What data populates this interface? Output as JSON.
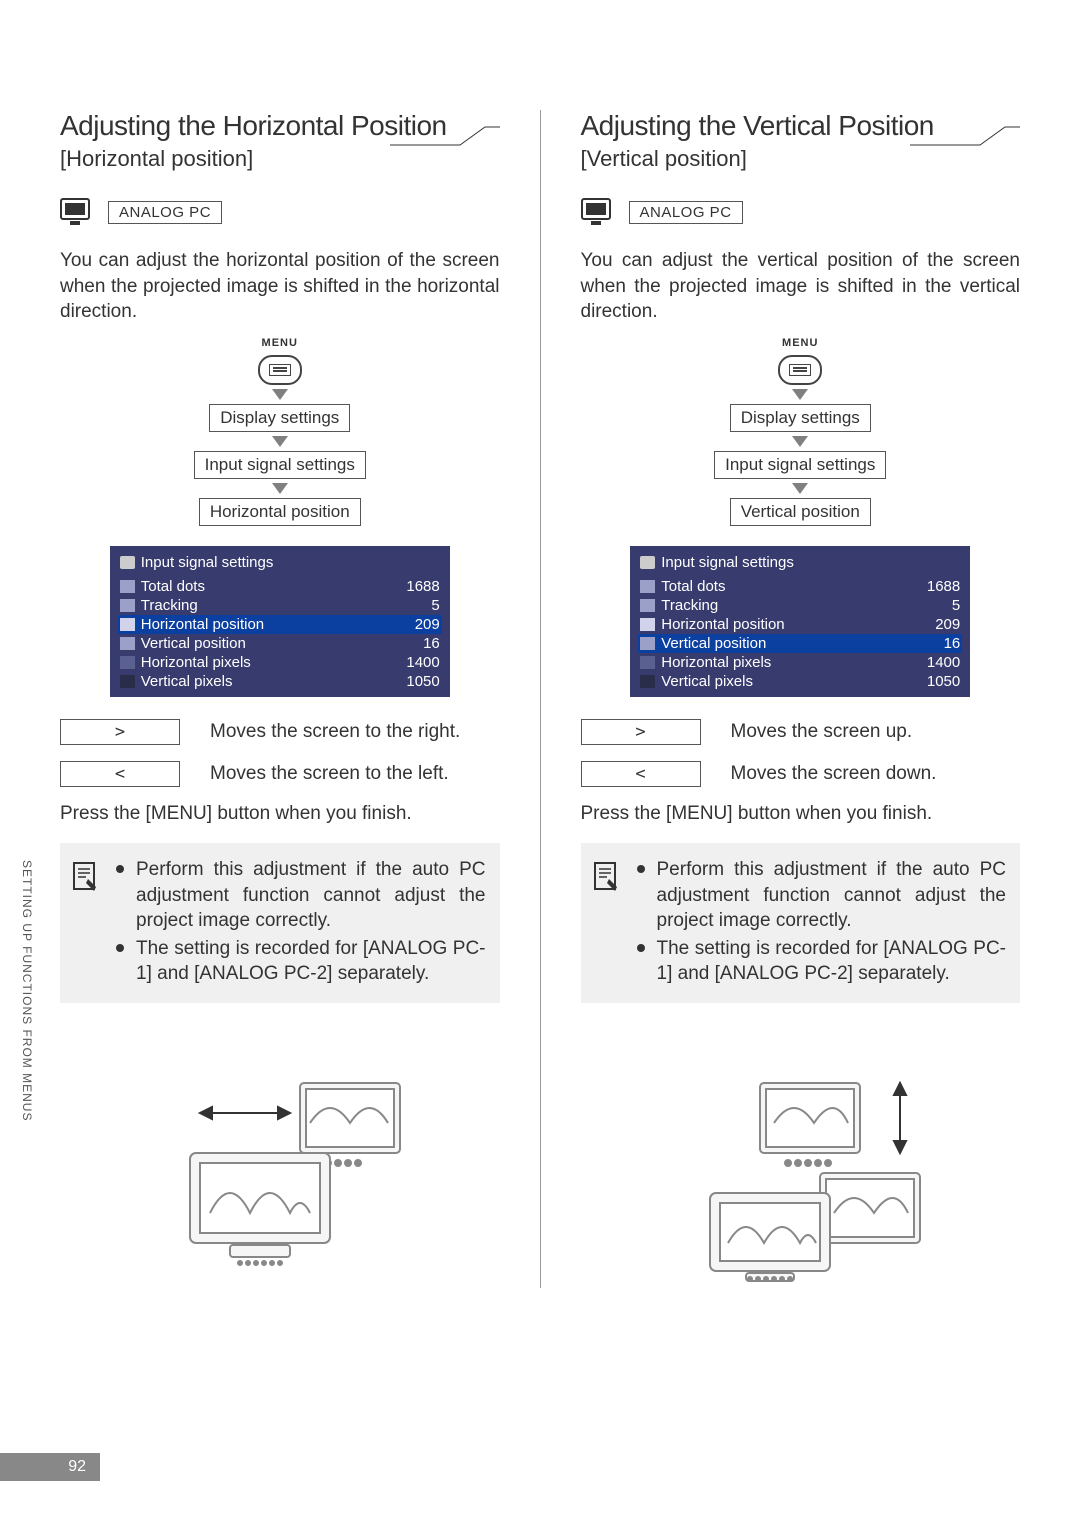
{
  "page_number": "92",
  "side_tab": "SETTING UP FUNCTIONS FROM MENUS",
  "left": {
    "title": "Adjusting the Horizontal Position",
    "subtitle": "[Horizontal position]",
    "analog_label": "ANALOG PC",
    "body": "You can adjust the horizontal position of the screen when the projected image is shifted in the horizontal direction.",
    "menu_label": "MENU",
    "flow": [
      "Display settings",
      "Input signal settings",
      "Horizontal position"
    ],
    "osd_title": "Input signal settings",
    "osd_rows": [
      {
        "label": "Total dots",
        "value": "1688",
        "sel": false,
        "ic": "ic-dots"
      },
      {
        "label": "Tracking",
        "value": "5",
        "sel": false,
        "ic": "ic-track"
      },
      {
        "label": "Horizontal position",
        "value": "209",
        "sel": true,
        "ic": "ic-hpos"
      },
      {
        "label": "Vertical position",
        "value": "16",
        "sel": false,
        "ic": "ic-vpos"
      },
      {
        "label": "Horizontal pixels",
        "value": "1400",
        "sel": false,
        "ic": "ic-hpx"
      },
      {
        "label": "Vertical pixels",
        "value": "1050",
        "sel": false,
        "ic": "ic-vpx"
      }
    ],
    "keys": [
      {
        "key": ">",
        "desc": "Moves the screen to the right."
      },
      {
        "key": "<",
        "desc": "Moves the screen to the left."
      }
    ],
    "finish": "Press the [MENU] button when you finish.",
    "notes": [
      "Perform this adjustment if the auto PC adjustment function cannot adjust the project image correctly.",
      "The setting is recorded for [ANALOG PC-1] and [ANALOG PC-2] separately."
    ]
  },
  "right": {
    "title": "Adjusting the Vertical Position",
    "subtitle": "[Vertical position]",
    "analog_label": "ANALOG PC",
    "body": "You can adjust the vertical position of the screen when the projected image is shifted in the vertical direction.",
    "menu_label": "MENU",
    "flow": [
      "Display settings",
      "Input signal settings",
      "Vertical position"
    ],
    "osd_title": "Input signal settings",
    "osd_rows": [
      {
        "label": "Total dots",
        "value": "1688",
        "sel": false,
        "ic": "ic-dots"
      },
      {
        "label": "Tracking",
        "value": "5",
        "sel": false,
        "ic": "ic-track"
      },
      {
        "label": "Horizontal position",
        "value": "209",
        "sel": false,
        "ic": "ic-hpos"
      },
      {
        "label": "Vertical position",
        "value": "16",
        "sel": true,
        "ic": "ic-vpos"
      },
      {
        "label": "Horizontal pixels",
        "value": "1400",
        "sel": false,
        "ic": "ic-hpx"
      },
      {
        "label": "Vertical pixels",
        "value": "1050",
        "sel": false,
        "ic": "ic-vpx"
      }
    ],
    "keys": [
      {
        "key": ">",
        "desc": "Moves the screen up."
      },
      {
        "key": "<",
        "desc": "Moves the screen down."
      }
    ],
    "finish": "Press the [MENU] button when you finish.",
    "notes": [
      "Perform this adjustment if the auto PC adjustment function cannot adjust the project image correctly.",
      "The setting is recorded for [ANALOG PC-1] and [ANALOG PC-2] separately."
    ]
  },
  "colors": {
    "osd_bg": "#383b6e",
    "osd_sel": "#0b3fa0",
    "note_bg": "#f0f0f0",
    "arrow": "#808080",
    "footer_bar": "#888888"
  }
}
